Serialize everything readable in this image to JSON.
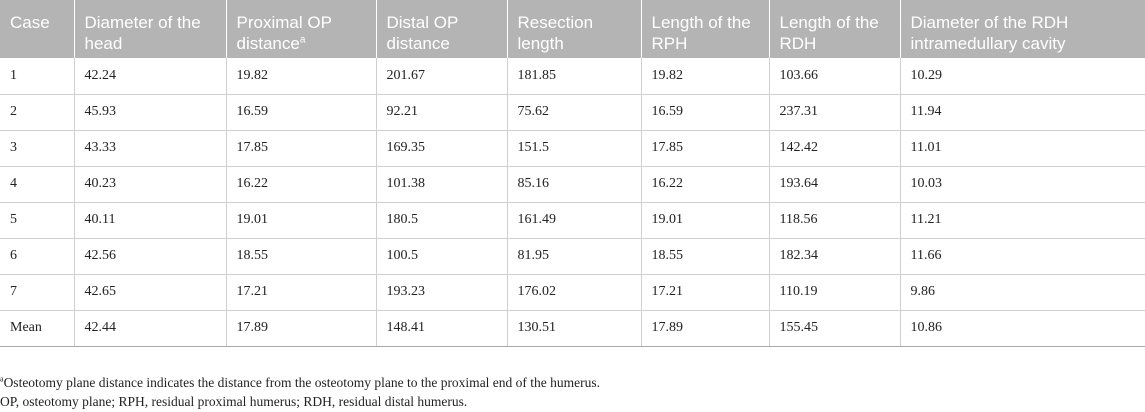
{
  "table": {
    "headers": [
      {
        "text": "Case",
        "sup": ""
      },
      {
        "text": "Diameter of the head",
        "sup": ""
      },
      {
        "text": "Proximal OP distance",
        "sup": "a"
      },
      {
        "text": "Distal OP distance",
        "sup": ""
      },
      {
        "text": "Resection length",
        "sup": ""
      },
      {
        "text": "Length of the RPH",
        "sup": ""
      },
      {
        "text": "Length of the RDH",
        "sup": ""
      },
      {
        "text": "Diameter of the RDH intramedullary cavity",
        "sup": ""
      }
    ],
    "rows": [
      [
        "1",
        "42.24",
        "19.82",
        "201.67",
        "181.85",
        "19.82",
        "103.66",
        "10.29"
      ],
      [
        "2",
        "45.93",
        "16.59",
        "92.21",
        "75.62",
        "16.59",
        "237.31",
        "11.94"
      ],
      [
        "3",
        "43.33",
        "17.85",
        "169.35",
        "151.5",
        "17.85",
        "142.42",
        "11.01"
      ],
      [
        "4",
        "40.23",
        "16.22",
        "101.38",
        "85.16",
        "16.22",
        "193.64",
        "10.03"
      ],
      [
        "5",
        "40.11",
        "19.01",
        "180.5",
        "161.49",
        "19.01",
        "118.56",
        "11.21"
      ],
      [
        "6",
        "42.56",
        "18.55",
        "100.5",
        "81.95",
        "18.55",
        "182.34",
        "11.66"
      ],
      [
        "7",
        "42.65",
        "17.21",
        "193.23",
        "176.02",
        "17.21",
        "110.19",
        "9.86"
      ],
      [
        "Mean",
        "42.44",
        "17.89",
        "148.41",
        "130.51",
        "17.89",
        "155.45",
        "10.86"
      ]
    ]
  },
  "footnotes": {
    "note_a_marker": "a",
    "note_a": "Osteotomy plane distance indicates the distance from the osteotomy plane to the proximal end of the humerus.",
    "abbreviations": "OP, osteotomy plane; RPH, residual proximal humerus; RDH, residual distal humerus."
  }
}
